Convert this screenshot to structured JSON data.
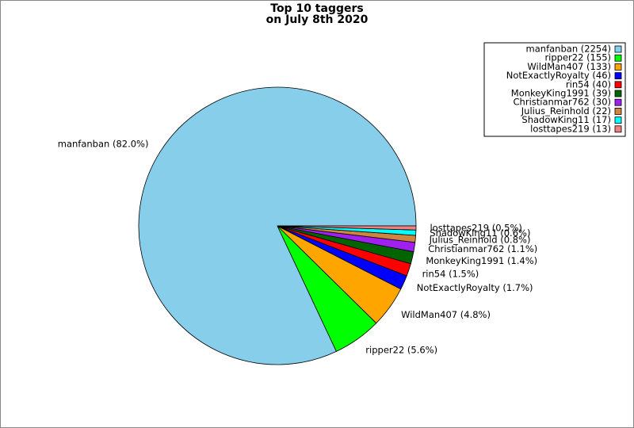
{
  "chart_data": {
    "type": "pie",
    "title": "Top 10 taggers",
    "subtitle": "on July 8th 2020",
    "categories": [
      "manfanban",
      "ripper22",
      "WildMan407",
      "NotExactlyRoyalty",
      "rin54",
      "MonkeyKing1991",
      "Christianmar762",
      "Julius_Reinhold",
      "ShadowKing11",
      "losttapes219"
    ],
    "values": [
      2254,
      155,
      133,
      46,
      40,
      39,
      30,
      22,
      17,
      13
    ],
    "legend_labels": [
      "manfanban (2254)",
      "ripper22 (155)",
      "WildMan407 (133)",
      "NotExactlyRoyalty (46)",
      "rin54 (40)",
      "MonkeyKing1991 (39)",
      "Christianmar762 (30)",
      "Julius_Reinhold (22)",
      "ShadowKing11 (17)",
      "losttapes219 (13)"
    ],
    "slice_labels": [
      "manfanban (82.0%)",
      "ripper22 (5.6%)",
      "WildMan407 (4.8%)",
      "NotExactlyRoyalty (1.7%)",
      "rin54 (1.5%)",
      "MonkeyKing1991 (1.4%)",
      "Christianmar762 (1.1%)",
      "Julius_Reinhold (0.8%)",
      "ShadowKing11 (0.6%)",
      "losttapes219 (0.5%)"
    ],
    "colors": [
      "#87ceeb",
      "#00ff00",
      "#ffa500",
      "#0000ff",
      "#ff0000",
      "#006400",
      "#a020f0",
      "#cd853f",
      "#00ffff",
      "#f08080"
    ],
    "legend_position": "upper right"
  }
}
